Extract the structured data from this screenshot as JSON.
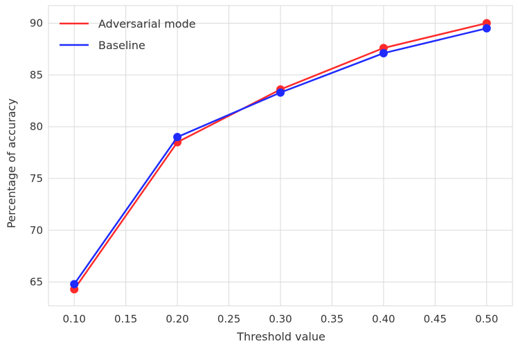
{
  "chart_data": {
    "type": "line",
    "x": [
      0.1,
      0.2,
      0.3,
      0.4,
      0.5
    ],
    "series": [
      {
        "name": "Adversarial mode",
        "color": "#ff2a2a",
        "values": [
          64.3,
          78.5,
          83.6,
          87.6,
          90.0
        ]
      },
      {
        "name": "Baseline",
        "color": "#1f2aff",
        "values": [
          64.8,
          79.0,
          83.3,
          87.1,
          89.5
        ]
      }
    ],
    "xlabel": "Threshold value",
    "ylabel": "Percentage of accuracy",
    "xlim": [
      0.075,
      0.525
    ],
    "ylim": [
      62.7,
      91.7
    ],
    "xticks": [
      "0.10",
      "0.15",
      "0.20",
      "0.25",
      "0.30",
      "0.35",
      "0.40",
      "0.45",
      "0.50"
    ],
    "yticks": [
      "65",
      "70",
      "75",
      "80",
      "85",
      "90"
    ],
    "grid": true,
    "legend_position": "top-left"
  }
}
